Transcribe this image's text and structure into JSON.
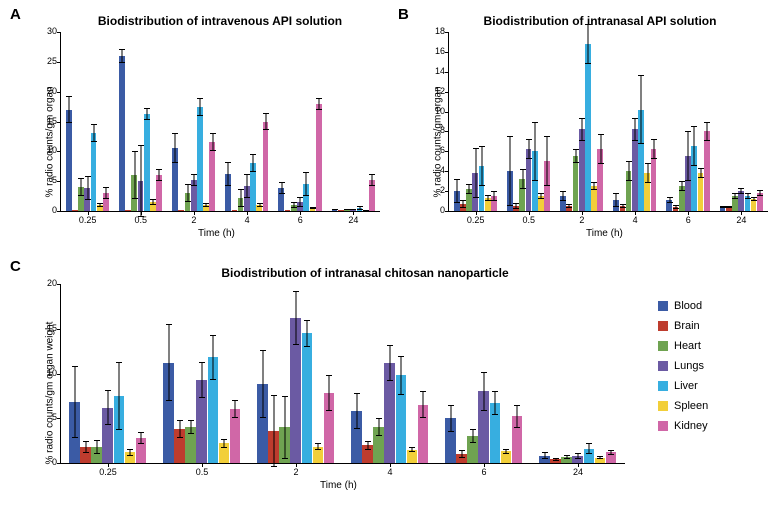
{
  "legend": {
    "items": [
      {
        "label": "Blood",
        "color": "#3b5ba5"
      },
      {
        "label": "Brain",
        "color": "#be3c2e"
      },
      {
        "label": "Heart",
        "color": "#6fa351"
      },
      {
        "label": "Lungs",
        "color": "#6b5aa3"
      },
      {
        "label": "Liver",
        "color": "#37aee0"
      },
      {
        "label": "Spleen",
        "color": "#f2cf3a"
      },
      {
        "label": "Kidney",
        "color": "#d067a7"
      }
    ]
  },
  "panelA": {
    "label": "A",
    "title": "Biodistribution of intravenous API solution",
    "ylabel": "% radio counts/gm organ",
    "xlabel": "Time (h)",
    "ylim": [
      0,
      30
    ],
    "ytick_step": 5,
    "categories": [
      "0.25",
      "0.5",
      "2",
      "4",
      "6",
      "24"
    ],
    "series": [
      {
        "color": "#3b5ba5",
        "values": [
          17,
          26,
          10.5,
          6.2,
          3.8,
          0.2
        ],
        "err": [
          2.2,
          1.2,
          2.5,
          2,
          1,
          0.1
        ]
      },
      {
        "color": "#be3c2e",
        "values": [
          0.15,
          0.15,
          0.15,
          0.15,
          0.15,
          0.1
        ],
        "err": [
          0,
          0,
          0,
          0,
          0,
          0
        ]
      },
      {
        "color": "#6fa351",
        "values": [
          4,
          6,
          3,
          2.2,
          1,
          0.3
        ],
        "err": [
          1.5,
          4,
          1.5,
          1.5,
          0.5,
          0.1
        ]
      },
      {
        "color": "#6b5aa3",
        "values": [
          3.8,
          5,
          5.2,
          4.2,
          1.5,
          0.2
        ],
        "err": [
          2,
          6,
          1,
          2,
          0.8,
          0.1
        ]
      },
      {
        "color": "#37aee0",
        "values": [
          13,
          16.2,
          17.5,
          8,
          4.5,
          0.5
        ],
        "err": [
          1.5,
          1,
          1.5,
          1.5,
          2,
          0.3
        ]
      },
      {
        "color": "#f2cf3a",
        "values": [
          1,
          1.5,
          1,
          1,
          0.5,
          0.1
        ],
        "err": [
          0.3,
          0.5,
          0.4,
          0.3,
          0.2,
          0.05
        ]
      },
      {
        "color": "#d067a7",
        "values": [
          3,
          6,
          11.5,
          15,
          18,
          5.2
        ],
        "err": [
          1,
          1,
          1.5,
          1.5,
          1,
          1
        ]
      }
    ]
  },
  "panelB": {
    "label": "B",
    "title": "Biodistribution of intranasal API solution",
    "ylabel": "% radio counts/gm organ",
    "xlabel": "Time (h)",
    "ylim": [
      0,
      18
    ],
    "ytick_step": 2,
    "categories": [
      "0.25",
      "0.5",
      "2",
      "4",
      "6",
      "24"
    ],
    "series": [
      {
        "color": "#3b5ba5",
        "values": [
          2,
          4,
          1.5,
          1.1,
          1.1,
          0.4
        ],
        "err": [
          1.2,
          3.5,
          0.5,
          0.7,
          0.3,
          0.1
        ]
      },
      {
        "color": "#be3c2e",
        "values": [
          0.7,
          0.5,
          0.5,
          0.5,
          0.4,
          0.4
        ],
        "err": [
          0.4,
          0.3,
          0.2,
          0.2,
          0.2,
          0.1
        ]
      },
      {
        "color": "#6fa351",
        "values": [
          2.2,
          3.2,
          5.5,
          4,
          2.5,
          1.5
        ],
        "err": [
          0.5,
          1,
          0.7,
          1,
          0.5,
          0.3
        ]
      },
      {
        "color": "#6b5aa3",
        "values": [
          3.8,
          6.2,
          8.2,
          8.2,
          5.5,
          2
        ],
        "err": [
          2.5,
          1,
          1.2,
          1.2,
          2.5,
          0.3
        ]
      },
      {
        "color": "#37aee0",
        "values": [
          4.5,
          6,
          16.8,
          10.2,
          6.5,
          1.5
        ],
        "err": [
          2,
          3,
          2,
          3.5,
          2,
          0.3
        ]
      },
      {
        "color": "#f2cf3a",
        "values": [
          1.3,
          1.5,
          2.5,
          3.8,
          3.8,
          1.2
        ],
        "err": [
          0.3,
          0.3,
          0.4,
          1,
          0.5,
          0.2
        ]
      },
      {
        "color": "#d067a7",
        "values": [
          1.5,
          5,
          6.2,
          6.2,
          8,
          1.8
        ],
        "err": [
          0.5,
          2.5,
          1.5,
          1,
          1,
          0.3
        ]
      }
    ]
  },
  "panelC": {
    "label": "C",
    "title": "Biodistribution of intranasal chitosan nanoparticle",
    "ylabel": "% radio counts/gm organ weight",
    "xlabel": "Time (h)",
    "ylim": [
      0,
      20
    ],
    "ytick_step": 5,
    "categories": [
      "0.25",
      "0.5",
      "2",
      "4",
      "6",
      "24"
    ],
    "series": [
      {
        "color": "#3b5ba5",
        "values": [
          6.8,
          11.2,
          8.8,
          5.8,
          5,
          0.8
        ],
        "err": [
          4,
          4.3,
          3.8,
          2,
          1.5,
          0.4
        ]
      },
      {
        "color": "#be3c2e",
        "values": [
          1.8,
          3.8,
          3.6,
          2,
          1,
          0.4
        ],
        "err": [
          0.7,
          1,
          4,
          0.5,
          0.4,
          0.2
        ]
      },
      {
        "color": "#6fa351",
        "values": [
          1.8,
          4,
          4,
          4,
          3,
          0.7
        ],
        "err": [
          0.8,
          0.8,
          3.5,
          1,
          0.8,
          0.2
        ]
      },
      {
        "color": "#6b5aa3",
        "values": [
          6.2,
          9.3,
          16.2,
          11.2,
          8,
          0.8
        ],
        "err": [
          2,
          2,
          3,
          2,
          2.2,
          0.3
        ]
      },
      {
        "color": "#37aee0",
        "values": [
          7.5,
          11.8,
          14.5,
          9.8,
          6.7,
          1.6
        ],
        "err": [
          3.8,
          2.5,
          1.5,
          2.2,
          1.3,
          0.6
        ]
      },
      {
        "color": "#f2cf3a",
        "values": [
          1.2,
          2.2,
          1.8,
          1.5,
          1.3,
          0.6
        ],
        "err": [
          0.4,
          0.5,
          0.4,
          0.3,
          0.3,
          0.2
        ]
      },
      {
        "color": "#d067a7",
        "values": [
          2.8,
          6,
          7.8,
          6.5,
          5.2,
          1.2
        ],
        "err": [
          0.7,
          1,
          2,
          1.5,
          1.3,
          0.3
        ]
      }
    ]
  }
}
